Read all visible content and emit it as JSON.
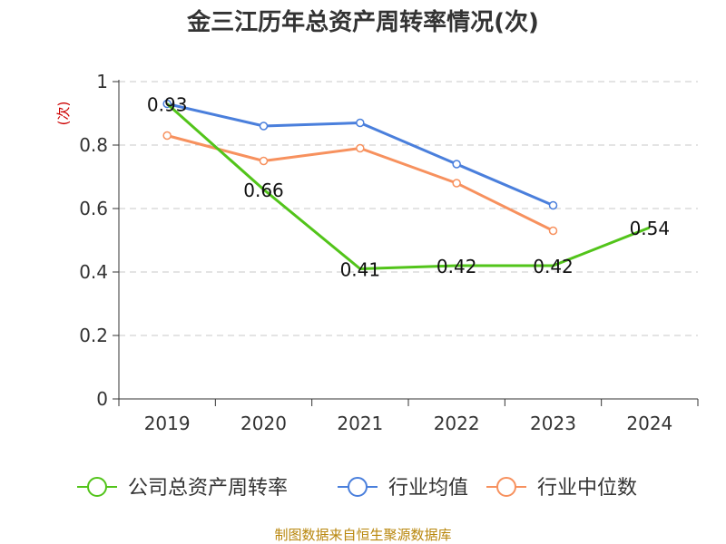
{
  "chart_data": {
    "type": "line",
    "title": "金三江历年总资产周转率情况(次)",
    "ylabel": "(次)",
    "xlabel": "",
    "categories": [
      "2019",
      "2020",
      "2021",
      "2022",
      "2023",
      "2024"
    ],
    "ylim": [
      0,
      1
    ],
    "yticks": [
      "0",
      "0.2",
      "0.4",
      "0.6",
      "0.8",
      "1"
    ],
    "grid": true,
    "legend_position": "bottom",
    "series": [
      {
        "name": "公司总资产周转率",
        "color": "#52c41a",
        "values": [
          0.93,
          0.66,
          0.41,
          0.42,
          0.42,
          0.54
        ],
        "labels": [
          "0.93",
          "0.66",
          "0.41",
          "0.42",
          "0.42",
          "0.54"
        ]
      },
      {
        "name": "行业均值",
        "color": "#4a7fdc",
        "values": [
          0.93,
          0.86,
          0.87,
          0.74,
          0.61,
          null
        ]
      },
      {
        "name": "行业中位数",
        "color": "#f7915e",
        "values": [
          0.83,
          0.75,
          0.79,
          0.68,
          0.53,
          null
        ]
      }
    ]
  },
  "footer": "制图数据来自恒生聚源数据库"
}
